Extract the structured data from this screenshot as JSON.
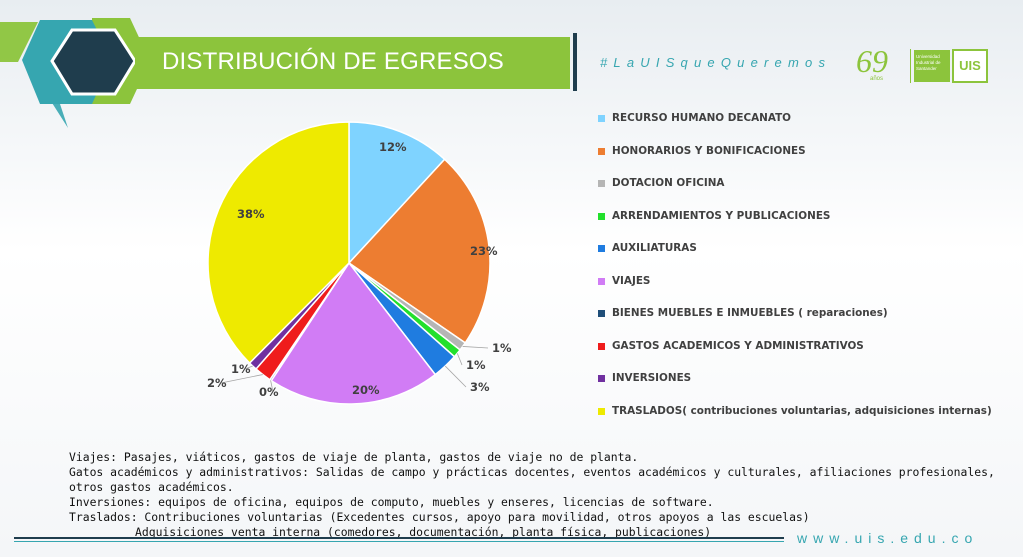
{
  "header": {
    "title": "DISTRIBUCIÓN DE EGRESOS",
    "hashtag": "#LaUISqueQueremos",
    "logo_years": "69",
    "logo_years_caption": "años",
    "logo_university": "Universidad Industrial de Santander",
    "logo_mark": "UIS"
  },
  "chart_data": {
    "type": "pie",
    "title": "",
    "series": [
      {
        "name": "RECURSO HUMANO DECANATO",
        "value": 12,
        "label": "12%",
        "color": "#7fd3ff"
      },
      {
        "name": "HONORARIOS Y BONIFICACIONES",
        "value": 23,
        "label": "23%",
        "color": "#ed7d31"
      },
      {
        "name": "DOTACION OFICINA",
        "value": 1,
        "label": "1%",
        "color": "#b5b5b5"
      },
      {
        "name": "ARRENDAMIENTOS Y PUBLICACIONES",
        "value": 1,
        "label": "1%",
        "color": "#22e02c"
      },
      {
        "name": "AUXILIATURAS",
        "value": 3,
        "label": "3%",
        "color": "#1f7ce0"
      },
      {
        "name": "VIAJES",
        "value": 20,
        "label": "20%",
        "color": "#d17cf5"
      },
      {
        "name": "BIENES MUEBLES E INMUEBLES ( reparaciones)",
        "value": 0.2,
        "label": "0%",
        "color": "#1f4e79"
      },
      {
        "name": "GASTOS ACADEMICOS Y ADMINISTRATIVOS",
        "value": 2,
        "label": "2%",
        "color": "#ef1c1c"
      },
      {
        "name": "INVERSIONES",
        "value": 1,
        "label": "1%",
        "color": "#7030a0"
      },
      {
        "name": "TRASLADOS( contribuciones voluntarias, adquisiciones internas)",
        "value": 38,
        "label": "38%",
        "color": "#eeea00"
      }
    ],
    "legend_position": "right"
  },
  "notes": [
    "Viajes: Pasajes, viáticos, gastos de viaje de planta, gastos de viaje no de planta.",
    "Gatos académicos y administrativos: Salidas de campo y prácticas docentes, eventos académicos y culturales, afiliaciones profesionales,",
    "otros gastos académicos.",
    "Inversiones: equipos de oficina, equipos de computo, muebles y enseres, licencias de software.",
    "Traslados: Contribuciones voluntarias (Excedentes cursos, apoyo para movilidad, otros apoyos a las escuelas)",
    "Adquisiciones venta interna (comedores, documentación, planta física, publicaciones)"
  ],
  "footer": {
    "website": "www.uis.edu.co"
  },
  "colors": {
    "brand_green": "#8cc43c",
    "brand_teal": "#36a6b0",
    "brand_dark": "#1f3d4d"
  }
}
